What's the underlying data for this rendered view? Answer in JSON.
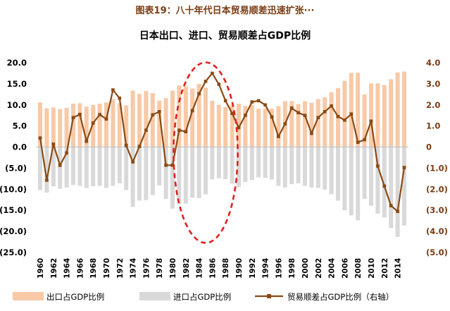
{
  "figure_caption": "图表19：八十年代日本贸易顺差迅速扩张···",
  "colors": {
    "export_bar": "#f8c9a6",
    "import_bar": "#d9d9d9",
    "balance_line": "#8b4a14",
    "highlight_ellipse": "#e0201d",
    "right_axis_text": "#7a3b12",
    "caption_text": "#7a3b12"
  },
  "chart_data": {
    "type": "bar+line",
    "title": "日本出口、进口、贸易顺差占GDP比例",
    "x": [
      1960,
      1961,
      1962,
      1963,
      1964,
      1965,
      1966,
      1967,
      1968,
      1969,
      1970,
      1971,
      1972,
      1973,
      1974,
      1975,
      1976,
      1977,
      1978,
      1979,
      1980,
      1981,
      1982,
      1983,
      1984,
      1985,
      1986,
      1987,
      1988,
      1989,
      1990,
      1991,
      1992,
      1993,
      1994,
      1995,
      1996,
      1997,
      1998,
      1999,
      2000,
      2001,
      2002,
      2003,
      2004,
      2005,
      2006,
      2007,
      2008,
      2009,
      2010,
      2011,
      2012,
      2013,
      2014,
      2015
    ],
    "x_tick_labels": [
      "1960",
      "1962",
      "1964",
      "1966",
      "1968",
      "1970",
      "1972",
      "1974",
      "1976",
      "1978",
      "1980",
      "1982",
      "1984",
      "1986",
      "1988",
      "1990",
      "1992",
      "1994",
      "1996",
      "1998",
      "2000",
      "2002",
      "2004",
      "2006",
      "2008",
      "2010",
      "2012",
      "2014"
    ],
    "left_axis": {
      "ylim": [
        -25,
        20
      ],
      "tick_labels": [
        "20.0",
        "15.0",
        "10.0",
        "5.0",
        "0.0",
        "(5.0)",
        "(10.0)",
        "(15.0)",
        "(20.0)",
        "(25.0)"
      ]
    },
    "right_axis": {
      "ylim": [
        -5,
        4
      ],
      "tick_labels": [
        "4.0",
        "3.0",
        "2.0",
        "1.0",
        "0",
        "(1.0)",
        "(2.0)",
        "(3.0)",
        "(4.0)",
        "(5.0)"
      ]
    },
    "series": [
      {
        "name": "出口占GDP比例",
        "type": "bar",
        "axis": "left",
        "values": [
          10.6,
          9.2,
          9.4,
          9.0,
          9.3,
          10.3,
          10.4,
          9.6,
          10.0,
          10.3,
          10.6,
          11.4,
          10.4,
          9.9,
          13.4,
          12.6,
          13.3,
          12.8,
          11.0,
          11.6,
          13.4,
          14.6,
          14.4,
          13.9,
          15.0,
          14.1,
          11.0,
          10.0,
          9.5,
          9.9,
          10.3,
          9.8,
          10.0,
          9.1,
          9.1,
          9.1,
          9.7,
          10.9,
          10.9,
          10.2,
          10.9,
          10.5,
          11.4,
          11.8,
          13.0,
          14.0,
          15.7,
          17.6,
          17.6,
          12.5,
          15.1,
          15.1,
          14.7,
          16.1,
          17.7,
          17.9
        ]
      },
      {
        "name": "进口占GDP比例",
        "type": "bar",
        "axis": "left",
        "values": [
          -10.2,
          -10.8,
          -9.3,
          -9.9,
          -9.6,
          -9.0,
          -9.2,
          -9.7,
          -9.3,
          -9.2,
          -9.7,
          -9.2,
          -8.6,
          -10.2,
          -14.2,
          -12.7,
          -12.6,
          -11.4,
          -9.1,
          -12.3,
          -14.6,
          -13.6,
          -13.4,
          -12.0,
          -12.1,
          -11.2,
          -7.7,
          -7.4,
          -7.6,
          -8.7,
          -9.5,
          -8.3,
          -7.8,
          -7.2,
          -7.3,
          -7.7,
          -9.2,
          -9.6,
          -8.8,
          -8.6,
          -9.2,
          -9.6,
          -9.7,
          -10.1,
          -11.2,
          -12.7,
          -15.0,
          -16.2,
          -17.4,
          -12.3,
          -13.9,
          -15.8,
          -16.7,
          -19.2,
          -21.3,
          -18.6
        ]
      },
      {
        "name": "贸易顺差占GDP比例 (右轴)",
        "type": "line",
        "axis": "right",
        "values": [
          0.43,
          -1.57,
          0.14,
          -0.86,
          -0.28,
          1.4,
          1.55,
          0.28,
          1.14,
          1.54,
          1.33,
          2.71,
          2.32,
          0.08,
          -0.7,
          0.03,
          0.8,
          1.53,
          1.68,
          -0.86,
          -0.86,
          0.8,
          0.73,
          1.73,
          2.53,
          3.12,
          3.5,
          2.98,
          2.2,
          1.6,
          0.92,
          1.51,
          2.14,
          2.2,
          2.0,
          1.43,
          0.5,
          1.1,
          1.85,
          1.63,
          1.5,
          0.65,
          1.4,
          1.68,
          1.95,
          1.45,
          1.28,
          1.57,
          0.23,
          0.35,
          1.23,
          -0.9,
          -1.85,
          -2.78,
          -3.05,
          -0.97
        ]
      }
    ],
    "legend": {
      "placement": "bottom",
      "entries": [
        "出口占GDP比例",
        "进口占GDP比例",
        "贸易顺差占GDP比例（右轴）"
      ]
    },
    "highlight": {
      "x_range": [
        1981,
        1989
      ]
    },
    "grid": false
  }
}
